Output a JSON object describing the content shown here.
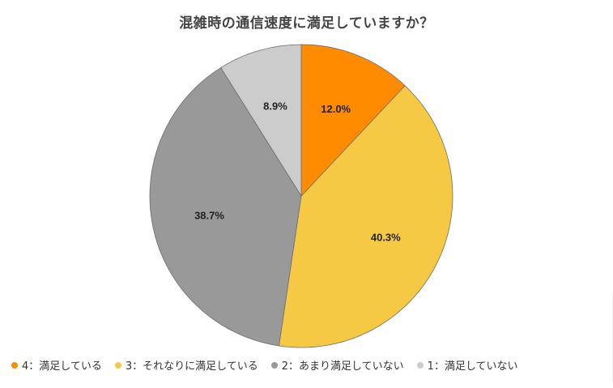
{
  "title": "混雑時の通信速度に満足していますか？",
  "chart_data": {
    "type": "pie",
    "title": "混雑時の通信速度に満足していますか？",
    "categories": [
      "4：満足している",
      "3：それなりに満足している",
      "2：あまり満足していない",
      "1：満足していない"
    ],
    "values": [
      12.0,
      40.3,
      38.7,
      8.9
    ],
    "labels": [
      "12.0%",
      "40.3%",
      "38.7%",
      "8.9%"
    ],
    "colors": [
      "#FF8C00",
      "#F5C944",
      "#999999",
      "#CCCCCC"
    ],
    "start_angle": "12 o'clock",
    "direction": "clockwise",
    "legend_position": "bottom",
    "center": [
      372,
      242
    ],
    "radius": 187
  },
  "legend": [
    {
      "label": "4：満足している",
      "color": "#FF8C00"
    },
    {
      "label": "3：それなりに満足している",
      "color": "#F5C944"
    },
    {
      "label": "2：あまり満足していない",
      "color": "#999999"
    },
    {
      "label": "1：満足していない",
      "color": "#CCCCCC"
    }
  ]
}
